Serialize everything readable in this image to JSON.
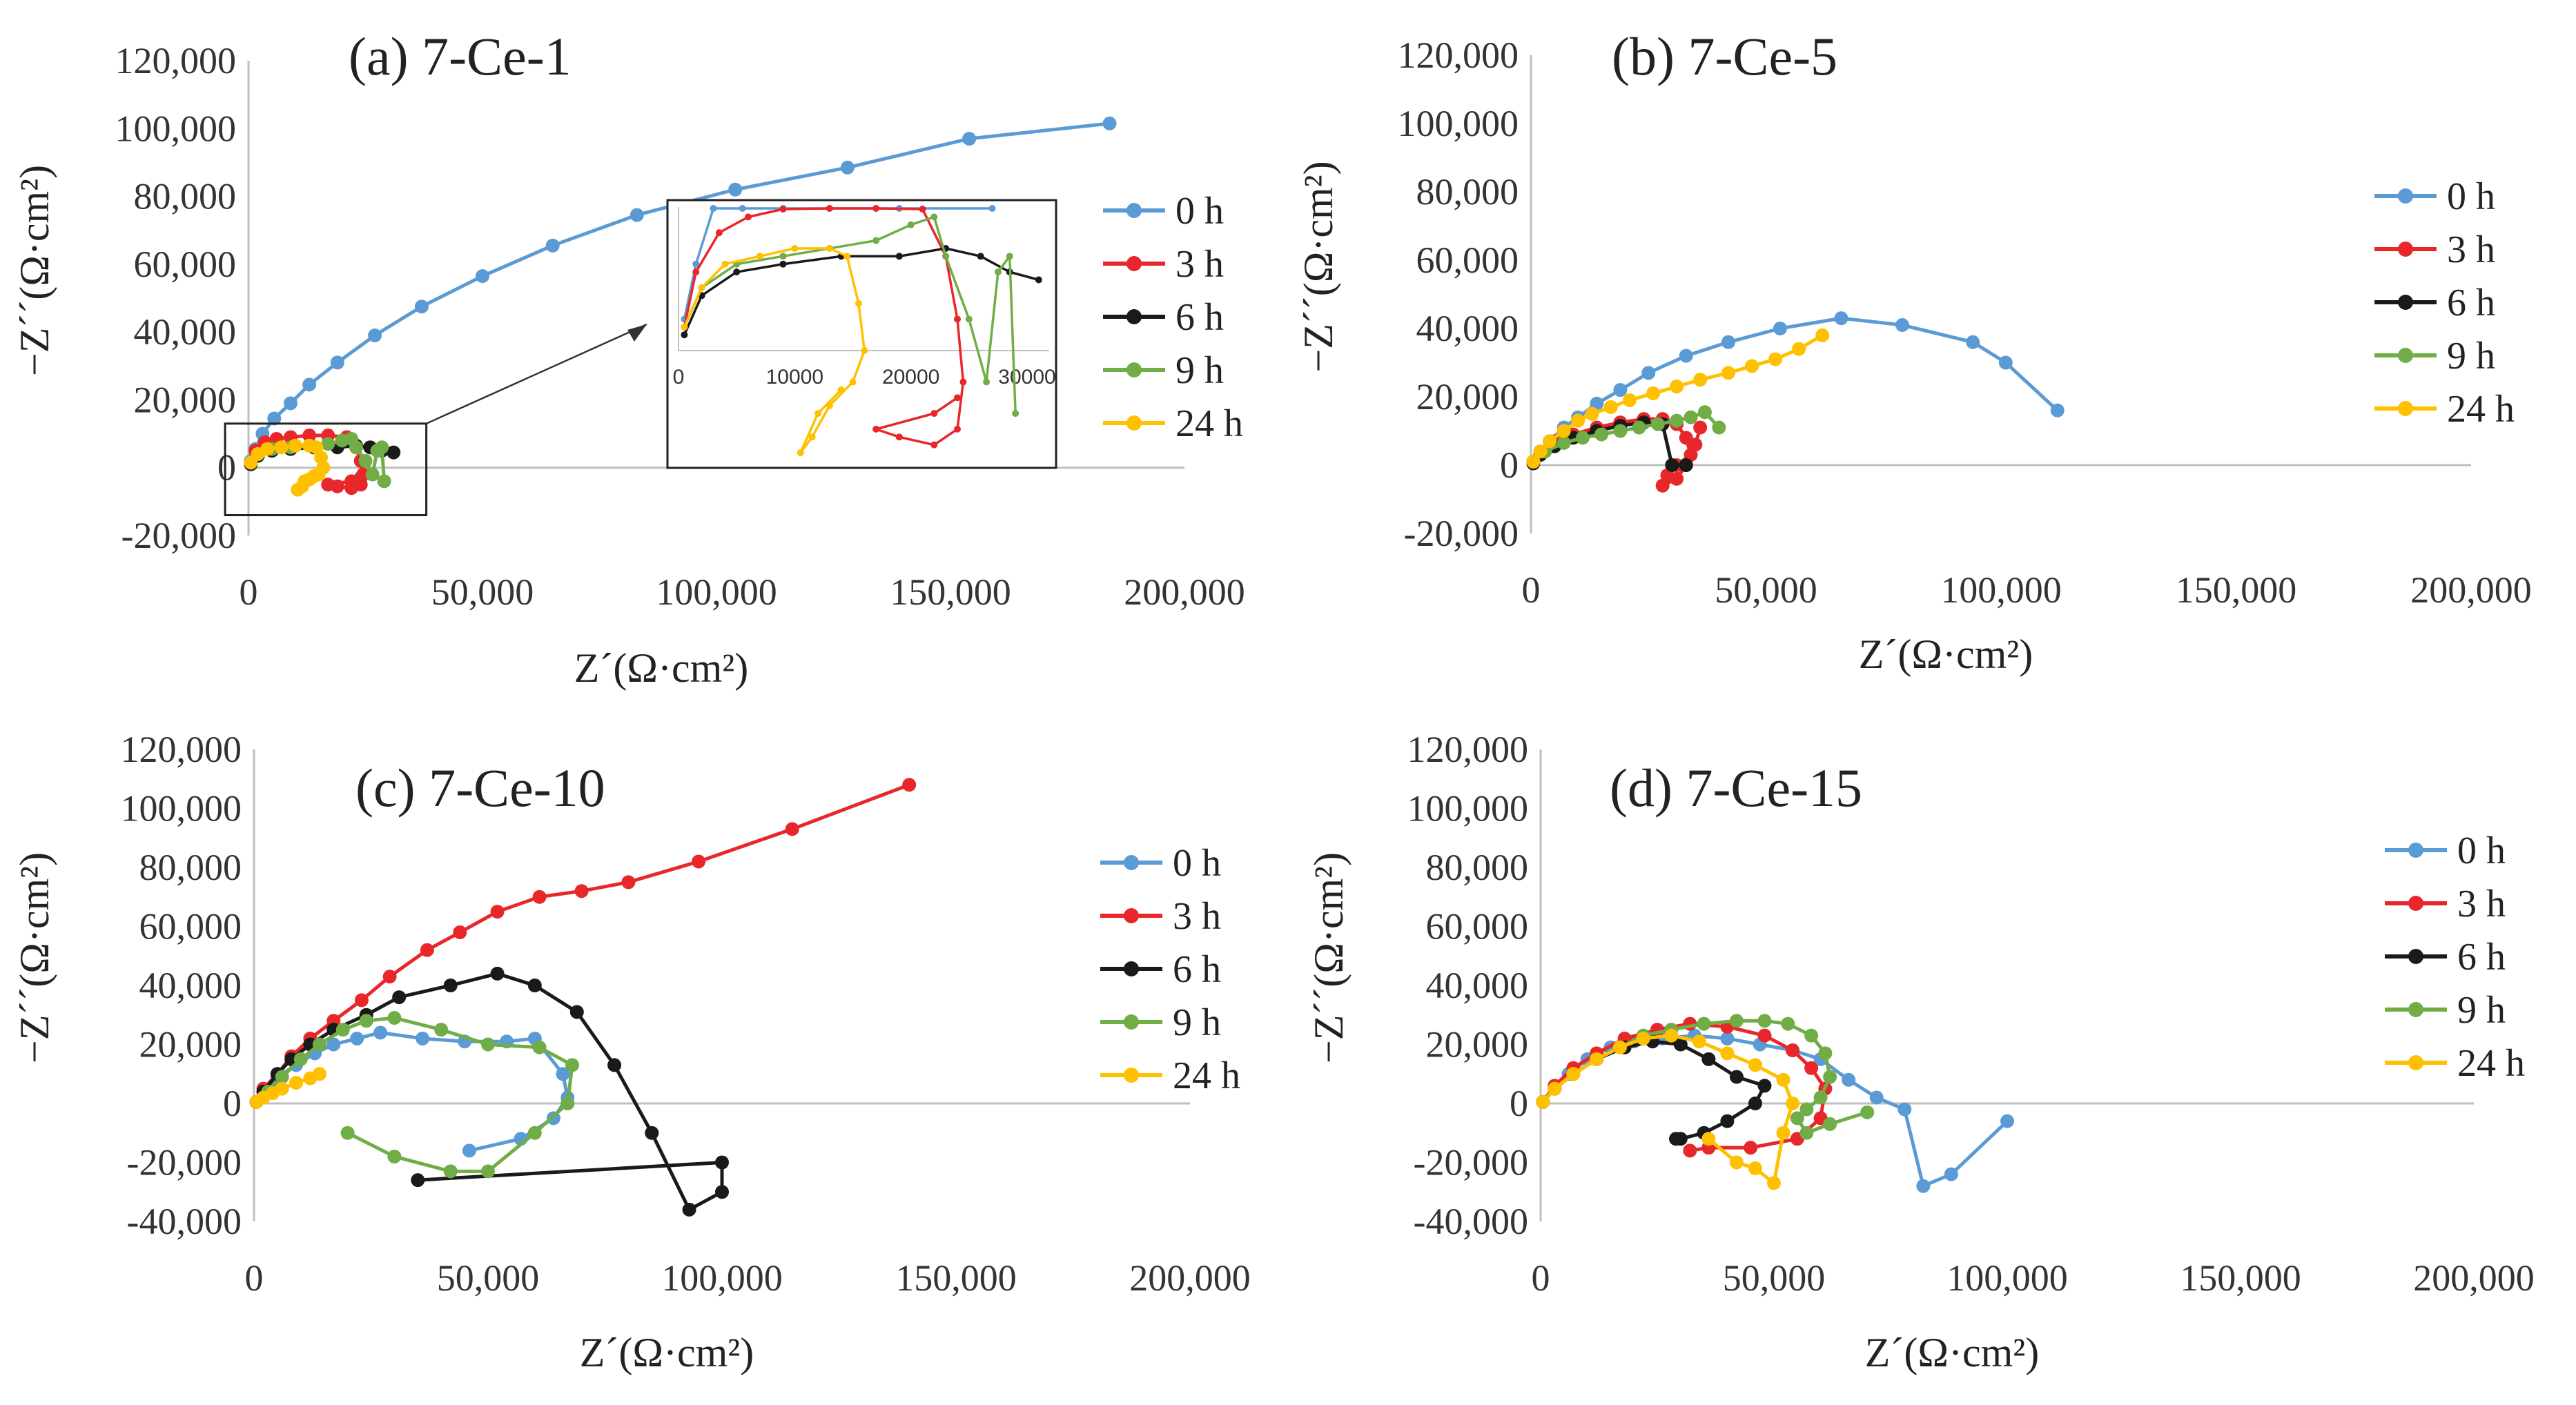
{
  "chart_data": [
    {
      "type": "line",
      "panel": "a",
      "title": "(a) 7-Ce-1",
      "xlabel": "Z´(Ω·cm²)",
      "ylabel": "−Z´´(Ω·cm²)",
      "xlim": [
        0,
        200000
      ],
      "ylim": [
        -20000,
        120000
      ],
      "xticks": [
        "0",
        "50,000",
        "100,000",
        "150,000",
        "200,000"
      ],
      "yticks": [
        "120,000",
        "100,000",
        "80,000",
        "60,000",
        "40,000",
        "20,000",
        "0",
        "-20,000"
      ],
      "legend": [
        "0 h",
        "3 h",
        "6 h",
        "9 h",
        "24 h"
      ],
      "series": [
        {
          "name": "0 h",
          "color": "#5B9BD5",
          "x": [
            500,
            1500,
            3000,
            5500,
            9000,
            13000,
            19000,
            27000,
            37000,
            50000,
            65000,
            83000,
            104000,
            128000,
            154000,
            184000
          ],
          "y": [
            2000,
            5500,
            10000,
            14500,
            19000,
            24500,
            31000,
            39000,
            47500,
            56500,
            65500,
            74500,
            82000,
            88500,
            97000,
            101500
          ]
        },
        {
          "name": "3 h",
          "color": "#E8272A",
          "x": [
            500,
            1500,
            3500,
            6000,
            9000,
            13000,
            17000,
            21000,
            23000,
            24000,
            24500,
            24000,
            22000,
            19000,
            17000,
            22000,
            24000
          ],
          "y": [
            1500,
            5000,
            7500,
            8500,
            9000,
            9500,
            9500,
            9000,
            6000,
            2000,
            -2000,
            -5000,
            -6000,
            -5500,
            -5000,
            -4000,
            -3000
          ]
        },
        {
          "name": "6 h",
          "color": "#1A1A1A",
          "x": [
            500,
            2000,
            5000,
            9000,
            14000,
            19000,
            23000,
            26000,
            28500,
            31000
          ],
          "y": [
            1000,
            3500,
            5000,
            5500,
            6000,
            6000,
            6500,
            6000,
            5000,
            4500
          ]
        },
        {
          "name": "9 h",
          "color": "#70AD47",
          "x": [
            500,
            2000,
            5000,
            9000,
            13000,
            17000,
            20000,
            22000,
            23000,
            25000,
            26500,
            27500,
            28500,
            29000
          ],
          "y": [
            1500,
            4000,
            5500,
            6000,
            6500,
            7000,
            8000,
            8500,
            6000,
            2000,
            -2000,
            5000,
            6000,
            -4000
          ]
        },
        {
          "name": "24 h",
          "color": "#FFC000",
          "x": [
            500,
            2000,
            4000,
            7000,
            10000,
            13000,
            14500,
            15500,
            16000,
            15000,
            13000,
            11500,
            10500,
            12000,
            14000
          ],
          "y": [
            1500,
            4000,
            5500,
            6000,
            6500,
            6500,
            6000,
            3000,
            0,
            -2000,
            -3500,
            -5500,
            -6500,
            -4000,
            -2500
          ]
        }
      ],
      "inset": {
        "xticks": [
          "0",
          "10000",
          "20000",
          "30000"
        ]
      }
    },
    {
      "type": "line",
      "panel": "b",
      "title": "(b) 7-Ce-5",
      "xlabel": "Z´(Ω·cm²)",
      "ylabel": "−Z´´(Ω·cm²)",
      "xlim": [
        0,
        200000
      ],
      "ylim": [
        -20000,
        120000
      ],
      "xticks": [
        "0",
        "50,000",
        "100,000",
        "150,000",
        "200,000"
      ],
      "yticks": [
        "120,000",
        "100,000",
        "80,000",
        "60,000",
        "40,000",
        "20,000",
        "0",
        "-20,000"
      ],
      "legend": [
        "0 h",
        "3 h",
        "6 h",
        "9 h",
        "24 h"
      ],
      "series": [
        {
          "name": "0 h",
          "color": "#5B9BD5",
          "x": [
            500,
            2000,
            4000,
            7000,
            10000,
            14000,
            19000,
            25000,
            33000,
            42000,
            53000,
            66000,
            79000,
            94000,
            101000,
            112000
          ],
          "y": [
            1000,
            4000,
            7000,
            11000,
            14000,
            18000,
            22000,
            27000,
            32000,
            36000,
            40000,
            43000,
            41000,
            36000,
            30000,
            16000
          ]
        },
        {
          "name": "3 h",
          "color": "#E8272A",
          "x": [
            500,
            2000,
            5000,
            9000,
            14000,
            19000,
            24000,
            28000,
            31000,
            33000,
            34000,
            31000,
            29000,
            28000,
            31000,
            33000,
            35000,
            36000
          ],
          "y": [
            1000,
            4000,
            7000,
            9000,
            11000,
            12500,
            13500,
            13500,
            12000,
            8000,
            3000,
            0,
            -3000,
            -6000,
            -4000,
            0,
            6000,
            11000
          ]
        },
        {
          "name": "6 h",
          "color": "#1A1A1A",
          "x": [
            500,
            2000,
            5000,
            9000,
            14000,
            19000,
            24000,
            28000,
            30000,
            33000
          ],
          "y": [
            500,
            3000,
            5500,
            8000,
            10000,
            11500,
            12500,
            12000,
            0,
            0
          ]
        },
        {
          "name": "9 h",
          "color": "#70AD47",
          "x": [
            500,
            3000,
            7000,
            11000,
            15000,
            19000,
            23000,
            27000,
            31000,
            34000,
            37000,
            40000
          ],
          "y": [
            1000,
            4000,
            6500,
            8000,
            9000,
            10000,
            11000,
            12000,
            13000,
            14000,
            15500,
            11000
          ]
        },
        {
          "name": "24 h",
          "color": "#FFC000",
          "x": [
            500,
            2000,
            4000,
            7000,
            10000,
            13000,
            17000,
            21000,
            26000,
            31000,
            36000,
            42000,
            47000,
            52000,
            57000,
            62000
          ],
          "y": [
            1000,
            4000,
            7000,
            10000,
            13000,
            15000,
            17000,
            19000,
            21000,
            23000,
            25000,
            27000,
            29000,
            31000,
            34000,
            38000
          ]
        }
      ]
    },
    {
      "type": "line",
      "panel": "c",
      "title": "(c) 7-Ce-10",
      "xlabel": "Z´(Ω·cm²)",
      "ylabel": "−Z´´(Ω·cm²)",
      "xlim": [
        0,
        200000
      ],
      "ylim": [
        -40000,
        120000
      ],
      "xticks": [
        "0",
        "50,000",
        "100,000",
        "150,000",
        "200,000"
      ],
      "yticks": [
        "120,000",
        "100,000",
        "80,000",
        "60,000",
        "40,000",
        "20,000",
        "0",
        "-20,000",
        "-40,000"
      ],
      "legend": [
        "0 h",
        "3 h",
        "6 h",
        "9 h",
        "24 h"
      ],
      "series": [
        {
          "name": "0 h",
          "color": "#5B9BD5",
          "x": [
            500,
            2000,
            5000,
            9000,
            13000,
            17000,
            22000,
            27000,
            36000,
            45000,
            54000,
            60000,
            66000,
            67000,
            64000,
            57000,
            46000
          ],
          "y": [
            500,
            4000,
            9000,
            13000,
            17000,
            20000,
            22000,
            24000,
            22000,
            21000,
            21000,
            22000,
            10000,
            2000,
            -5000,
            -12000,
            -16000
          ]
        },
        {
          "name": "3 h",
          "color": "#E8272A",
          "x": [
            500,
            2000,
            5000,
            8000,
            12000,
            17000,
            23000,
            29000,
            37000,
            44000,
            52000,
            61000,
            70000,
            80000,
            95000,
            115000,
            140000
          ],
          "y": [
            500,
            5000,
            10000,
            16000,
            22000,
            28000,
            35000,
            43000,
            52000,
            58000,
            65000,
            70000,
            72000,
            75000,
            82000,
            93000,
            108000
          ]
        },
        {
          "name": "6 h",
          "color": "#1A1A1A",
          "x": [
            500,
            2000,
            5000,
            8000,
            12000,
            17000,
            24000,
            31000,
            42000,
            52000,
            60000,
            69000,
            77000,
            85000,
            93000,
            100000,
            100000,
            35000
          ],
          "y": [
            500,
            4000,
            10000,
            15000,
            20000,
            25000,
            30000,
            36000,
            40000,
            44000,
            40000,
            31000,
            13000,
            -10000,
            -36000,
            -30000,
            -20000,
            -26000
          ]
        },
        {
          "name": "9 h",
          "color": "#70AD47",
          "x": [
            500,
            3000,
            6000,
            10000,
            14000,
            19000,
            24000,
            30000,
            40000,
            50000,
            61000,
            68000,
            67000,
            60000,
            50000,
            42000,
            30000,
            20000
          ],
          "y": [
            500,
            4000,
            9000,
            15000,
            20000,
            25000,
            28000,
            29000,
            25000,
            20000,
            19000,
            13000,
            0,
            -10000,
            -23000,
            -23000,
            -18000,
            -10000
          ]
        },
        {
          "name": "24 h",
          "color": "#FFC000",
          "x": [
            500,
            2000,
            4000,
            6000,
            9000,
            12000,
            14000
          ],
          "y": [
            500,
            2000,
            3500,
            5000,
            7000,
            8500,
            10000
          ]
        }
      ]
    },
    {
      "type": "line",
      "panel": "d",
      "title": "(d) 7-Ce-15",
      "xlabel": "Z´(Ω·cm²)",
      "ylabel": "−Z´´(Ω·cm²)",
      "xlim": [
        0,
        200000
      ],
      "ylim": [
        -40000,
        120000
      ],
      "xticks": [
        "0",
        "50,000",
        "100,000",
        "150,000",
        "200,000"
      ],
      "yticks": [
        "120,000",
        "100,000",
        "80,000",
        "60,000",
        "40,000",
        "20,000",
        "0",
        "-20,000",
        "-40,000"
      ],
      "legend": [
        "0 h",
        "3 h",
        "6 h",
        "9 h",
        "24 h"
      ],
      "series": [
        {
          "name": "0 h",
          "color": "#5B9BD5",
          "x": [
            500,
            3000,
            6000,
            10000,
            15000,
            20000,
            26000,
            33000,
            40000,
            47000,
            54000,
            60000,
            66000,
            72000,
            78000,
            82000,
            88000,
            100000
          ],
          "y": [
            500,
            5000,
            10000,
            15000,
            19000,
            21000,
            22000,
            23000,
            22000,
            20000,
            18000,
            15000,
            8000,
            2000,
            -2000,
            -28000,
            -24000,
            -6000
          ]
        },
        {
          "name": "3 h",
          "color": "#E8272A",
          "x": [
            500,
            3000,
            7000,
            12000,
            18000,
            25000,
            32000,
            40000,
            48000,
            54000,
            58000,
            61000,
            60000,
            55000,
            45000,
            36000,
            32000
          ],
          "y": [
            500,
            6000,
            12000,
            17000,
            22000,
            25000,
            27000,
            26000,
            23000,
            18000,
            12000,
            5000,
            -5000,
            -12000,
            -15000,
            -15000,
            -16000
          ]
        },
        {
          "name": "6 h",
          "color": "#1A1A1A",
          "x": [
            500,
            3000,
            7000,
            12000,
            18000,
            24000,
            30000,
            36000,
            42000,
            48000,
            46000,
            40000,
            35000,
            30000,
            29000
          ],
          "y": [
            500,
            5000,
            10000,
            15000,
            19000,
            21000,
            20000,
            15000,
            9000,
            6000,
            0,
            -6000,
            -10000,
            -12000,
            -12000
          ]
        },
        {
          "name": "9 h",
          "color": "#70AD47",
          "x": [
            500,
            3000,
            7000,
            12000,
            17000,
            22000,
            28000,
            35000,
            42000,
            48000,
            53000,
            58000,
            61000,
            62000,
            60000,
            57000,
            55000,
            57000,
            62000,
            70000
          ],
          "y": [
            500,
            5000,
            10000,
            15000,
            19000,
            23000,
            25000,
            27000,
            28000,
            28000,
            27000,
            23000,
            17000,
            9000,
            2000,
            -2000,
            -5000,
            -10000,
            -7000,
            -3000
          ]
        },
        {
          "name": "24 h",
          "color": "#FFC000",
          "x": [
            500,
            3000,
            7000,
            12000,
            17000,
            22000,
            28000,
            34000,
            40000,
            46000,
            52000,
            54000,
            52000,
            50000,
            46000,
            42000,
            36000
          ],
          "y": [
            500,
            5000,
            10000,
            15000,
            19000,
            22000,
            23000,
            21000,
            17000,
            13000,
            8000,
            0,
            -10000,
            -27000,
            -22000,
            -20000,
            -12000
          ]
        }
      ]
    }
  ]
}
